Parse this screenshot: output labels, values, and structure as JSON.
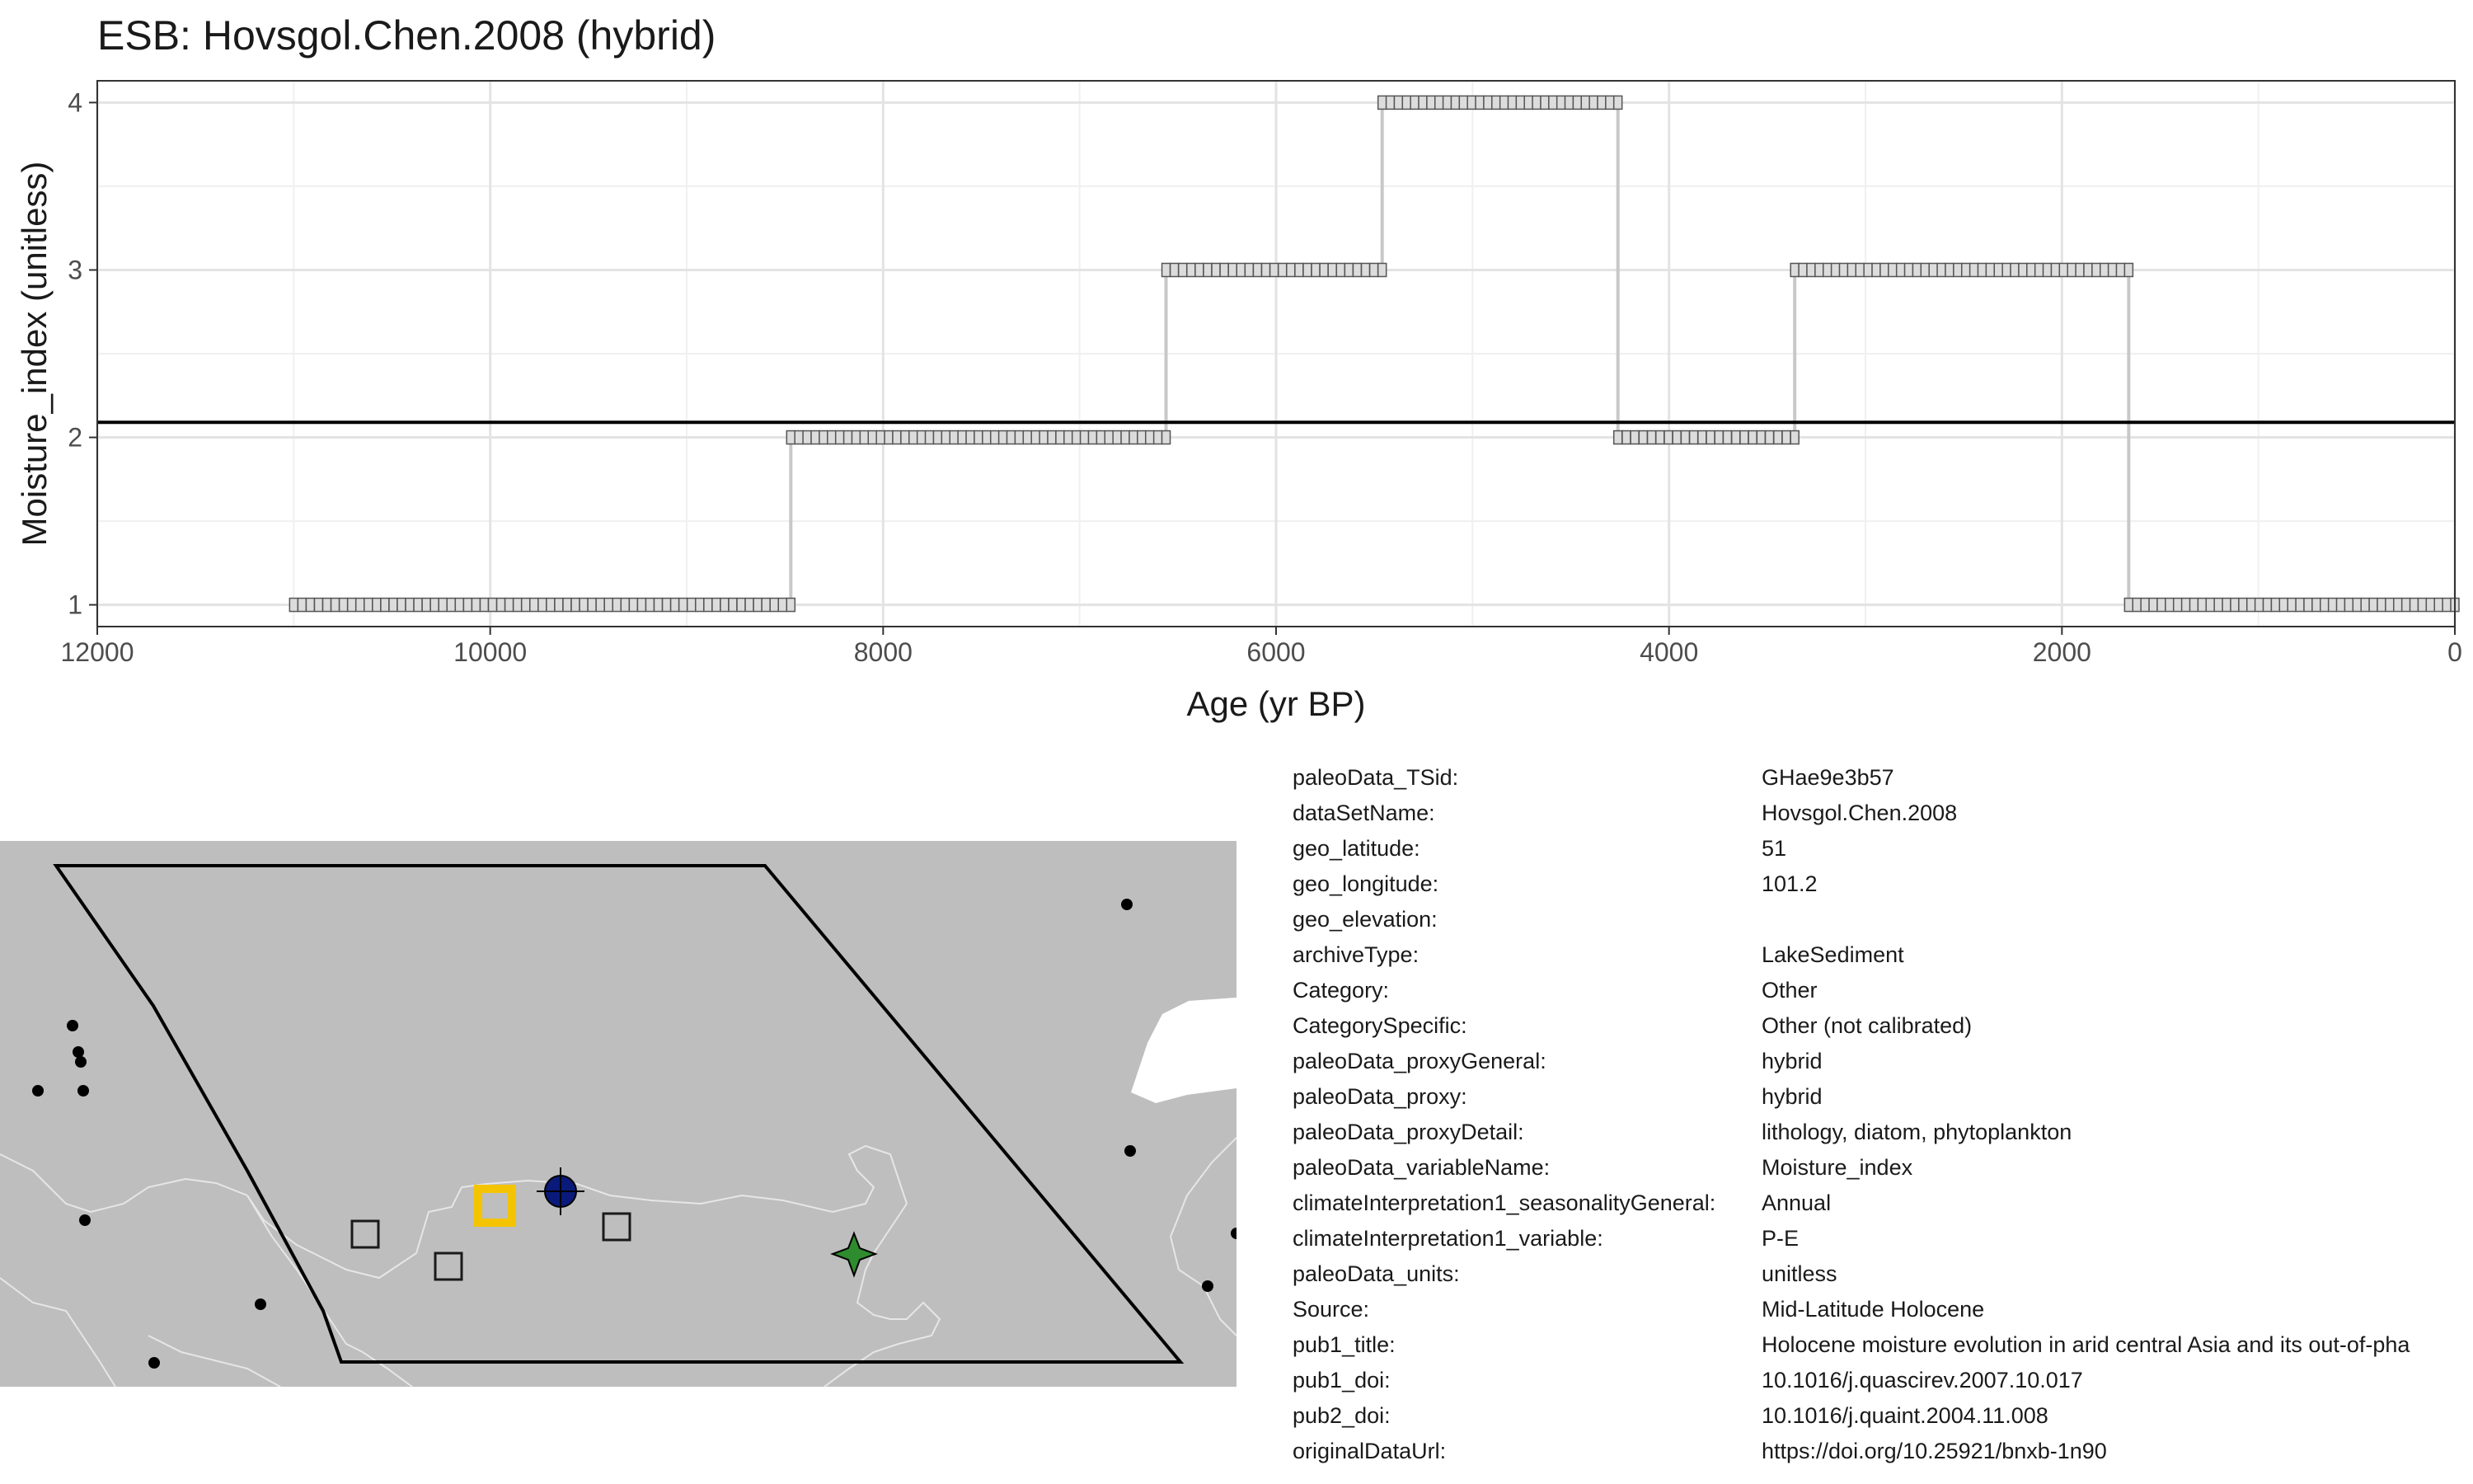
{
  "chart_data": {
    "type": "line",
    "title": "ESB: Hovsgol.Chen.2008 (hybrid)",
    "xlabel": "Age (yr BP)",
    "ylabel": "Moisture_index (unitless)",
    "xlim": [
      12000,
      0
    ],
    "ylim": [
      0.87,
      4.13
    ],
    "x_ticks": [
      12000,
      10000,
      8000,
      6000,
      4000,
      2000,
      0
    ],
    "x_tick_labels": [
      "12000",
      "10000",
      "8000",
      "6000",
      "4000",
      "2000",
      "0"
    ],
    "y_ticks": [
      1,
      2,
      3,
      4
    ],
    "y_tick_labels": [
      "1",
      "2",
      "3",
      "4"
    ],
    "grid": true,
    "reference_line": {
      "y": 2.09,
      "color": "#000000"
    },
    "step_segments": [
      {
        "from": 11000,
        "to": 8470,
        "value": 1
      },
      {
        "from": 8470,
        "to": 6560,
        "value": 2
      },
      {
        "from": 6560,
        "to": 5460,
        "value": 3
      },
      {
        "from": 5460,
        "to": 4260,
        "value": 4
      },
      {
        "from": 4260,
        "to": 3360,
        "value": 2
      },
      {
        "from": 3360,
        "to": 1660,
        "value": 3
      },
      {
        "from": 1660,
        "to": 0,
        "value": 1
      }
    ],
    "series_color": "#c8c8c8"
  },
  "map": {
    "land_color": "#bebebe",
    "sea_color": "#ffffff",
    "border_color": "#e6e6e6",
    "region_outline_color": "#000000",
    "highlight_color": "#f5c400",
    "markers": {
      "target": {
        "symbol": "hollow-square",
        "color": "#f5c400"
      },
      "circle": {
        "symbol": "filled-circle-crosshair",
        "color": "#0a1a7a"
      },
      "star": {
        "symbol": "four-point-star",
        "color": "#2e8b2e"
      },
      "squares": {
        "symbol": "hollow-square",
        "color": "#bebebe"
      },
      "dots": {
        "symbol": "dot",
        "color": "#000000"
      }
    }
  },
  "metadata": [
    {
      "key": "paleoData_TSid:",
      "value": "GHae9e3b57"
    },
    {
      "key": "dataSetName:",
      "value": "Hovsgol.Chen.2008"
    },
    {
      "key": "geo_latitude:",
      "value": "51"
    },
    {
      "key": "geo_longitude:",
      "value": "101.2"
    },
    {
      "key": "geo_elevation:",
      "value": ""
    },
    {
      "key": "archiveType:",
      "value": "LakeSediment"
    },
    {
      "key": "Category:",
      "value": "Other"
    },
    {
      "key": "CategorySpecific:",
      "value": "Other (not calibrated)"
    },
    {
      "key": "paleoData_proxyGeneral:",
      "value": "hybrid"
    },
    {
      "key": "paleoData_proxy:",
      "value": "hybrid"
    },
    {
      "key": "paleoData_proxyDetail:",
      "value": "lithology, diatom, phytoplankton"
    },
    {
      "key": "paleoData_variableName:",
      "value": "Moisture_index"
    },
    {
      "key": "climateInterpretation1_seasonalityGeneral:",
      "value": "Annual"
    },
    {
      "key": "climateInterpretation1_variable:",
      "value": "P-E"
    },
    {
      "key": "paleoData_units:",
      "value": "unitless"
    },
    {
      "key": "Source:",
      "value": "Mid-Latitude Holocene"
    },
    {
      "key": "pub1_title:",
      "value": "Holocene moisture evolution in arid central Asia and its out-of-pha"
    },
    {
      "key": "pub1_doi:",
      "value": "10.1016/j.quascirev.2007.10.017"
    },
    {
      "key": "pub2_doi:",
      "value": "10.1016/j.quaint.2004.11.008"
    },
    {
      "key": "originalDataUrl:",
      "value": "https://doi.org/10.25921/bnxb-1n90"
    }
  ]
}
